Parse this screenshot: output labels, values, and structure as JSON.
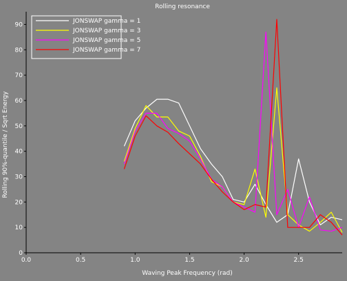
{
  "chart_data": {
    "type": "line",
    "title": "Rolling resonance",
    "xlabel": "Waving Peak Frequency (rad)",
    "ylabel": "Rolling 90%-quantile / Sqrt Energy",
    "xlim": [
      0.0,
      2.9
    ],
    "ylim": [
      0,
      95
    ],
    "xticks": [
      "0.0",
      "0.5",
      "1.0",
      "1.5",
      "2.0",
      "2.5"
    ],
    "xtick_values": [
      0.0,
      0.5,
      1.0,
      1.5,
      2.0,
      2.5
    ],
    "yticks": [
      "0",
      "10",
      "20",
      "30",
      "40",
      "50",
      "60",
      "70",
      "80",
      "90"
    ],
    "ytick_values": [
      0,
      10,
      20,
      30,
      40,
      50,
      60,
      70,
      80,
      90
    ],
    "grid": false,
    "legend_position": "top-left",
    "background_color": "#848484",
    "series": [
      {
        "name": "JONSWAP gamma = 1",
        "color": "#ffffff",
        "points": [
          [
            0.9,
            42
          ],
          [
            1.0,
            52
          ],
          [
            1.1,
            57
          ],
          [
            1.2,
            60.5
          ],
          [
            1.3,
            60.5
          ],
          [
            1.4,
            59
          ],
          [
            1.5,
            50
          ],
          [
            1.6,
            41
          ],
          [
            1.7,
            35
          ],
          [
            1.8,
            30
          ],
          [
            1.9,
            21
          ],
          [
            2.0,
            20
          ],
          [
            2.1,
            27
          ],
          [
            2.2,
            19
          ],
          [
            2.3,
            12
          ],
          [
            2.4,
            15
          ],
          [
            2.5,
            37
          ],
          [
            2.6,
            20
          ],
          [
            2.7,
            11
          ],
          [
            2.8,
            14
          ],
          [
            2.9,
            13
          ]
        ]
      },
      {
        "name": "JONSWAP gamma = 3",
        "color": "#ffff00",
        "points": [
          [
            0.9,
            36
          ],
          [
            1.0,
            49
          ],
          [
            1.1,
            58
          ],
          [
            1.2,
            53.5
          ],
          [
            1.3,
            53.5
          ],
          [
            1.4,
            48
          ],
          [
            1.5,
            46
          ],
          [
            1.6,
            38
          ],
          [
            1.7,
            28
          ],
          [
            1.8,
            26
          ],
          [
            1.9,
            20
          ],
          [
            2.0,
            19
          ],
          [
            2.1,
            33
          ],
          [
            2.2,
            14
          ],
          [
            2.3,
            65
          ],
          [
            2.4,
            15
          ],
          [
            2.5,
            11
          ],
          [
            2.6,
            8.5
          ],
          [
            2.7,
            12
          ],
          [
            2.8,
            16
          ],
          [
            2.9,
            8
          ]
        ]
      },
      {
        "name": "JONSWAP gamma = 5",
        "color": "#ff00ff",
        "points": [
          [
            0.9,
            35
          ],
          [
            1.0,
            48
          ],
          [
            1.1,
            55
          ],
          [
            1.2,
            55
          ],
          [
            1.3,
            49
          ],
          [
            1.4,
            47
          ],
          [
            1.5,
            44
          ],
          [
            1.6,
            37
          ],
          [
            1.7,
            29
          ],
          [
            1.8,
            26
          ],
          [
            1.9,
            20
          ],
          [
            2.0,
            18
          ],
          [
            2.1,
            16
          ],
          [
            2.2,
            87
          ],
          [
            2.3,
            15
          ],
          [
            2.4,
            25
          ],
          [
            2.5,
            10
          ],
          [
            2.6,
            22
          ],
          [
            2.7,
            9
          ],
          [
            2.8,
            8.5
          ],
          [
            2.9,
            10
          ]
        ]
      },
      {
        "name": "JONSWAP gamma = 7",
        "color": "#ff0000",
        "points": [
          [
            0.9,
            33
          ],
          [
            1.0,
            46
          ],
          [
            1.1,
            54
          ],
          [
            1.2,
            50
          ],
          [
            1.3,
            47.5
          ],
          [
            1.4,
            43
          ],
          [
            1.5,
            39
          ],
          [
            1.6,
            35
          ],
          [
            1.7,
            29
          ],
          [
            1.8,
            24
          ],
          [
            1.9,
            20
          ],
          [
            2.0,
            17
          ],
          [
            2.1,
            19
          ],
          [
            2.2,
            18
          ],
          [
            2.3,
            92
          ],
          [
            2.4,
            10
          ],
          [
            2.5,
            10
          ],
          [
            2.6,
            10
          ],
          [
            2.7,
            15
          ],
          [
            2.8,
            12
          ],
          [
            2.9,
            7
          ]
        ]
      }
    ]
  }
}
